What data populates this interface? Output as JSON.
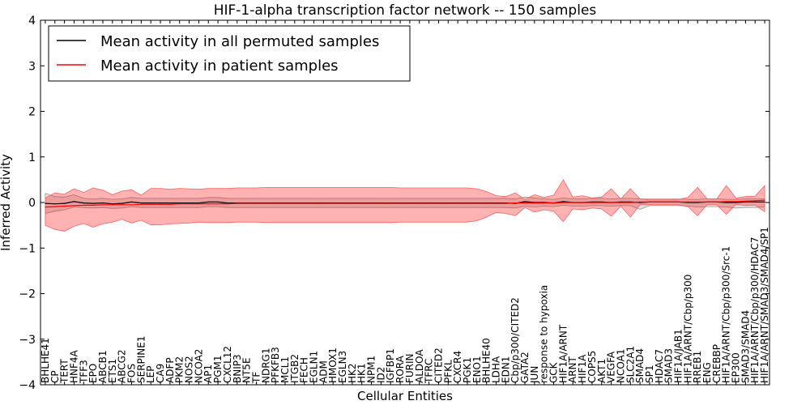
{
  "chart_data": {
    "type": "line",
    "title": "HIF-1-alpha transcription factor network -- 150 samples",
    "xlabel": "Cellular Entities",
    "ylabel": "Inferred Activity",
    "ylim": [
      -4,
      4
    ],
    "yticks": [
      4,
      3,
      2,
      1,
      0,
      -1,
      -2,
      -3,
      -4
    ],
    "ytick_labels": [
      "4",
      "3",
      "2",
      "1",
      "0",
      "−1",
      "−2",
      "−3",
      "−4"
    ],
    "legend_position": "upper-left",
    "categories": [
      "BHLHE41",
      "CP",
      "TERT",
      "HNF4A",
      "TFF3",
      "EPO",
      "ABCB1",
      "ETS1",
      "ABCG2",
      "FOS",
      "SERPINE1",
      "LEP",
      "CA9",
      "ADFP",
      "PKM2",
      "NOS2",
      "NCOA2",
      "AP1",
      "PGM1",
      "CXCL12",
      "BNIP3",
      "NT5E",
      "TF",
      "NDRG1",
      "PFKFB3",
      "MCL1",
      "ITGB2",
      "FECH",
      "EGLN1",
      "ADM",
      "HMOX1",
      "EGLN3",
      "HK2",
      "HK1",
      "NPM1",
      "ID2",
      "IGFBP1",
      "RORA",
      "FURIN",
      "ALDOA",
      "TFRC",
      "CITED2",
      "PFKL",
      "CXCR4",
      "PGK1",
      "ENO1",
      "BHLHE40",
      "LDHA",
      "EDN1",
      "Cbp/p300/CITED2",
      "GATA2",
      "JUN",
      "response to hypoxia",
      "GCK",
      "HIF1A/ARNT",
      "ARNT",
      "HIF1A",
      "COPS5",
      "AKT1",
      "VEGFA",
      "NCOA1",
      "SLC2A1",
      "SMAD4",
      "SP1",
      "HDAC7",
      "SMAD3",
      "HIF1A/JAB1",
      "HIF1A/ARNT/Cbp/p300",
      "RREB1",
      "ENG",
      "CREBBP",
      "HIF1A/ARNT/Cbp/p300/Src-1",
      "EP300",
      "SMAD3/SMAD4",
      "HIF1A/ARNT/Cbp/p300/HDAC7",
      "HIF1A/ARNT/SMAD3/SMAD4/SP1"
    ],
    "series": [
      {
        "name": "Mean activity in all permuted samples",
        "color": "#000000",
        "values": [
          -0.02,
          -0.03,
          -0.02,
          0.02,
          -0.01,
          -0.02,
          -0.01,
          -0.03,
          -0.02,
          0.01,
          -0.01,
          -0.01,
          -0.01,
          -0.01,
          -0.01,
          -0.01,
          -0.01,
          0.01,
          0.01,
          -0.01,
          -0.01,
          -0.01,
          -0.01,
          -0.01,
          -0.01,
          -0.01,
          -0.01,
          -0.01,
          -0.01,
          -0.01,
          -0.01,
          -0.01,
          -0.01,
          -0.01,
          -0.01,
          -0.01,
          -0.01,
          -0.01,
          -0.01,
          -0.01,
          -0.01,
          -0.01,
          -0.01,
          -0.01,
          -0.01,
          -0.01,
          -0.01,
          -0.01,
          -0.01,
          -0.02,
          0.02,
          0.0,
          0.0,
          -0.01,
          0.02,
          0.0,
          0.0,
          0.01,
          0.01,
          0.0,
          0.01,
          0.01,
          0.0,
          0.01,
          0.01,
          0.01,
          0.01,
          0.0,
          0.0,
          0.01,
          0.01,
          0.0,
          0.0,
          0.01,
          0.01,
          0.01
        ],
        "band": {
          "upper": [
            0.22,
            0.16,
            0.14,
            0.15,
            0.1,
            0.1,
            0.1,
            0.1,
            0.1,
            0.1,
            0.1,
            0.1,
            0.1,
            0.1,
            0.1,
            0.1,
            0.1,
            0.1,
            0.1,
            0.1,
            0.1,
            0.1,
            0.1,
            0.1,
            0.1,
            0.1,
            0.1,
            0.1,
            0.1,
            0.1,
            0.1,
            0.1,
            0.1,
            0.1,
            0.1,
            0.1,
            0.1,
            0.1,
            0.1,
            0.1,
            0.1,
            0.1,
            0.1,
            0.1,
            0.1,
            0.1,
            0.1,
            0.1,
            0.1,
            0.1,
            0.1,
            0.1,
            0.08,
            0.08,
            0.08,
            0.08,
            0.08,
            0.08,
            0.08,
            0.08,
            0.08,
            0.08,
            0.08,
            0.07,
            0.07,
            0.07,
            0.07,
            0.07,
            0.07,
            0.07,
            0.07,
            0.07,
            0.07,
            0.07,
            0.07,
            0.07
          ],
          "lower": [
            -0.22,
            -0.16,
            -0.14,
            -0.12,
            -0.1,
            -0.1,
            -0.1,
            -0.1,
            -0.1,
            -0.1,
            -0.1,
            -0.1,
            -0.1,
            -0.1,
            -0.1,
            -0.1,
            -0.1,
            -0.1,
            -0.1,
            -0.1,
            -0.1,
            -0.1,
            -0.1,
            -0.1,
            -0.1,
            -0.1,
            -0.1,
            -0.1,
            -0.1,
            -0.1,
            -0.1,
            -0.1,
            -0.1,
            -0.1,
            -0.1,
            -0.1,
            -0.1,
            -0.1,
            -0.1,
            -0.1,
            -0.1,
            -0.1,
            -0.1,
            -0.1,
            -0.1,
            -0.1,
            -0.1,
            -0.1,
            -0.1,
            -0.1,
            -0.1,
            -0.1,
            -0.08,
            -0.08,
            -0.08,
            -0.08,
            -0.08,
            -0.08,
            -0.08,
            -0.08,
            -0.08,
            -0.08,
            -0.15,
            -0.08,
            -0.08,
            -0.08,
            -0.08,
            -0.08,
            -0.1,
            -0.1,
            -0.1,
            -0.1,
            -0.12,
            -0.12,
            -0.12,
            -0.1
          ]
        }
      },
      {
        "name": "Mean activity in patient samples",
        "color": "#ff0000",
        "values": [
          -0.1,
          -0.09,
          -0.08,
          -0.07,
          -0.06,
          -0.06,
          -0.05,
          -0.05,
          -0.05,
          -0.05,
          -0.04,
          -0.04,
          -0.04,
          -0.04,
          -0.03,
          -0.03,
          -0.03,
          -0.03,
          -0.03,
          -0.03,
          -0.02,
          -0.02,
          -0.02,
          -0.02,
          -0.02,
          -0.02,
          -0.02,
          -0.02,
          -0.02,
          -0.02,
          -0.02,
          -0.02,
          -0.02,
          -0.02,
          -0.02,
          -0.02,
          -0.02,
          -0.02,
          -0.02,
          -0.02,
          -0.02,
          -0.02,
          -0.02,
          -0.02,
          -0.02,
          -0.02,
          -0.02,
          -0.02,
          -0.02,
          -0.01,
          -0.01,
          -0.01,
          -0.01,
          -0.01,
          0.0,
          0.0,
          0.0,
          0.0,
          0.0,
          0.0,
          0.0,
          0.0,
          0.01,
          0.01,
          0.01,
          0.01,
          0.01,
          0.01,
          0.01,
          0.01,
          0.01,
          0.02,
          0.02,
          0.03,
          0.04,
          0.05
        ],
        "band": {
          "upper": [
            0.2,
            0.3,
            0.26,
            0.37,
            0.28,
            0.38,
            0.32,
            0.22,
            0.3,
            0.33,
            0.2,
            0.35,
            0.35,
            0.33,
            0.34,
            0.33,
            0.32,
            0.34,
            0.34,
            0.34,
            0.34,
            0.34,
            0.34,
            0.35,
            0.35,
            0.35,
            0.35,
            0.35,
            0.35,
            0.35,
            0.35,
            0.35,
            0.35,
            0.35,
            0.35,
            0.35,
            0.35,
            0.34,
            0.34,
            0.34,
            0.34,
            0.34,
            0.34,
            0.34,
            0.34,
            0.32,
            0.26,
            0.17,
            0.15,
            0.22,
            0.08,
            0.18,
            0.12,
            0.17,
            0.5,
            0.12,
            0.15,
            0.1,
            0.12,
            0.3,
            0.08,
            0.3,
            0.07,
            0.05,
            0.05,
            0.05,
            0.06,
            0.1,
            0.32,
            0.07,
            0.07,
            0.35,
            0.08,
            0.1,
            0.1,
            0.32
          ],
          "lower": [
            -0.4,
            -0.5,
            -0.55,
            -0.45,
            -0.4,
            -0.48,
            -0.42,
            -0.38,
            -0.32,
            -0.4,
            -0.35,
            -0.45,
            -0.45,
            -0.43,
            -0.43,
            -0.42,
            -0.4,
            -0.41,
            -0.41,
            -0.41,
            -0.41,
            -0.41,
            -0.41,
            -0.42,
            -0.42,
            -0.42,
            -0.42,
            -0.42,
            -0.42,
            -0.42,
            -0.42,
            -0.42,
            -0.42,
            -0.42,
            -0.42,
            -0.42,
            -0.42,
            -0.41,
            -0.41,
            -0.41,
            -0.41,
            -0.41,
            -0.41,
            -0.41,
            -0.41,
            -0.38,
            -0.3,
            -0.2,
            -0.22,
            -0.28,
            -0.1,
            -0.2,
            -0.15,
            -0.18,
            -0.42,
            -0.14,
            -0.16,
            -0.12,
            -0.14,
            -0.3,
            -0.08,
            -0.32,
            -0.06,
            -0.06,
            -0.06,
            -0.06,
            -0.06,
            -0.1,
            -0.3,
            -0.06,
            -0.06,
            -0.28,
            -0.06,
            -0.1,
            -0.1,
            -0.25
          ]
        }
      }
    ]
  }
}
